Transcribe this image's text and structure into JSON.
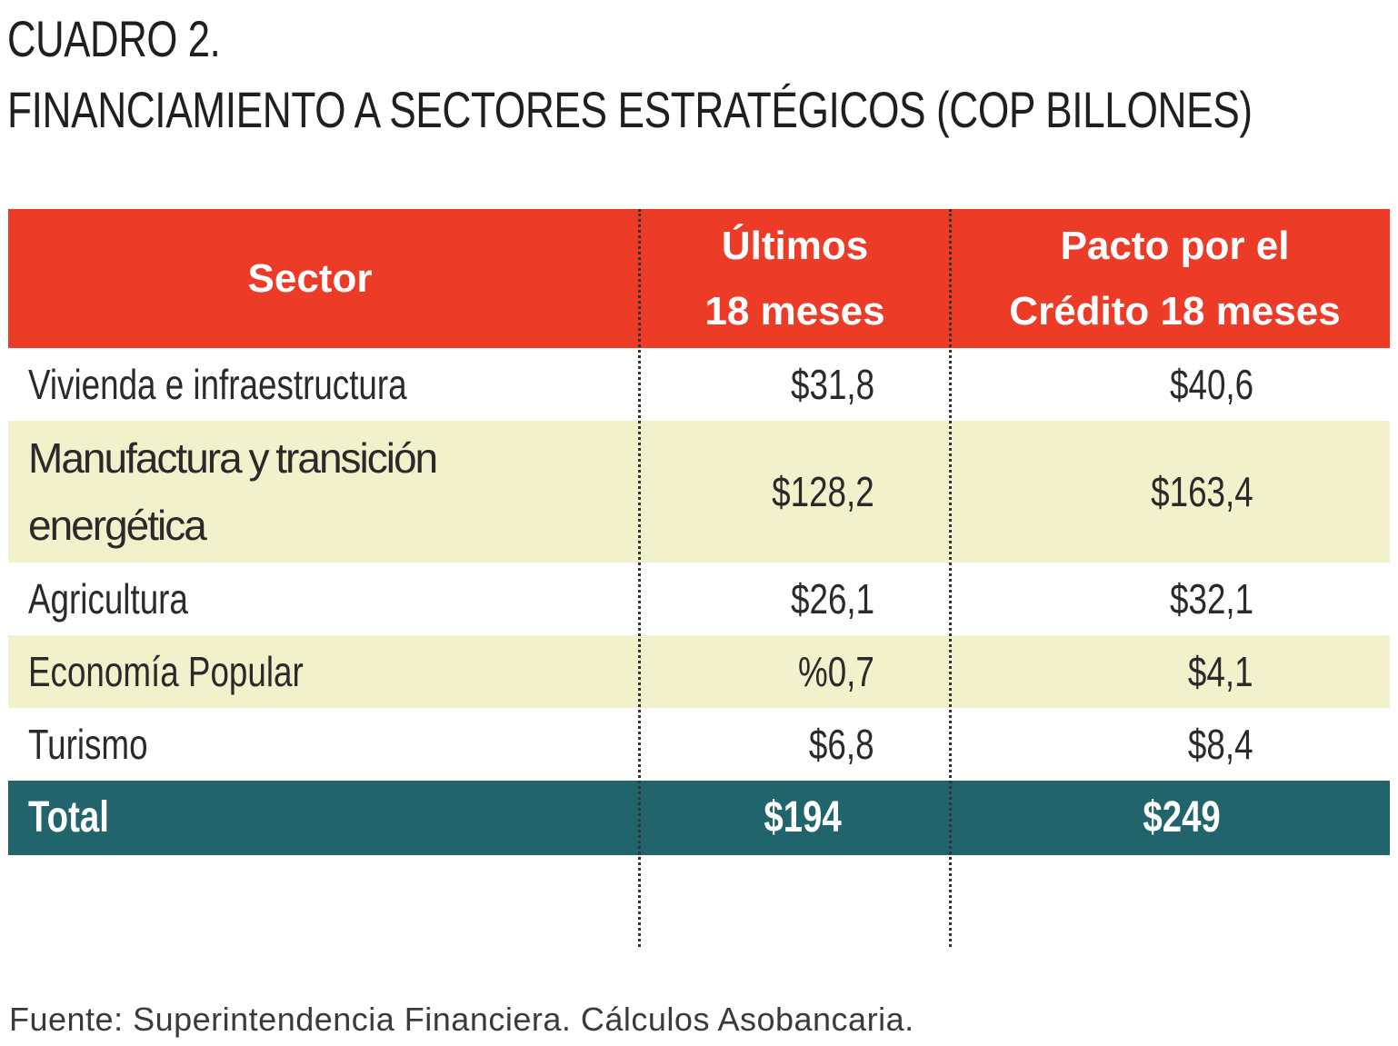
{
  "title": "CUADRO 2.",
  "subtitle": "FINANCIAMIENTO A SECTORES ESTRATÉGICOS (COP BILLONES)",
  "table": {
    "headers": {
      "sector": "Sector",
      "ultimos_line1": "Últimos",
      "ultimos_line2": "18 meses",
      "pacto_line1": "Pacto por el",
      "pacto_line2": "Crédito 18 meses"
    },
    "rows": [
      {
        "sector": "Vivienda e infraestructura",
        "ultimos": "$31,8",
        "pacto": "$40,6"
      },
      {
        "sector": "Manufactura y transición energética",
        "ultimos": "$128,2",
        "pacto": "$163,4"
      },
      {
        "sector": "Agricultura",
        "ultimos": "$26,1",
        "pacto": "$32,1"
      },
      {
        "sector": "Economía Popular",
        "ultimos": "%0,7",
        "pacto": "$4,1"
      },
      {
        "sector": "Turismo",
        "ultimos": "$6,8",
        "pacto": "$8,4"
      }
    ],
    "total": {
      "label": "Total",
      "ultimos": "$194",
      "pacto": "$249"
    }
  },
  "colors": {
    "header_bg": "#ec3c27",
    "alt_row_bg": "#f1f1cc",
    "total_bg": "#21646c"
  },
  "source": "Fuente: Superintendencia Financiera. Cálculos Asobancaria."
}
